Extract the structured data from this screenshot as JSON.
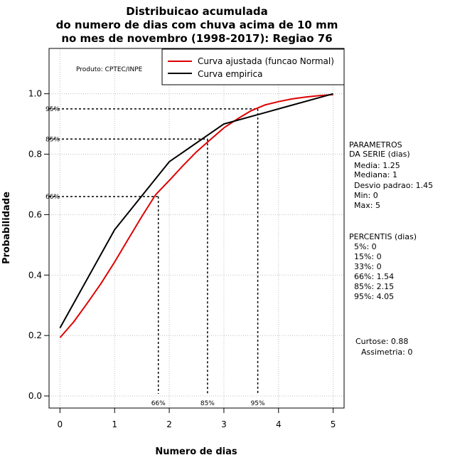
{
  "chart_data": {
    "type": "line",
    "title": [
      "Distribuicao acumulada",
      "do numero de dias com chuva acima de 10 mm",
      "no mes de novembro (1998-2017): Regiao 76"
    ],
    "xlabel": "Numero de dias",
    "ylabel": "Probabilidade",
    "xlim": [
      -0.2,
      5.2
    ],
    "ylim": [
      -0.04,
      1.15
    ],
    "x_ticks": [
      0,
      1,
      2,
      3,
      4,
      5
    ],
    "x_tick_labels": [
      "0",
      "1",
      "2",
      "3",
      "4",
      "5"
    ],
    "y_ticks": [
      0.0,
      0.2,
      0.4,
      0.6,
      0.8,
      1.0
    ],
    "y_tick_labels": [
      "0.0",
      "0.2",
      "0.4",
      "0.6",
      "0.8",
      "1.0"
    ],
    "grid": true,
    "product_label": "Produto: CPTEC/INPE",
    "legend": {
      "position": "top-right",
      "entries": [
        "Curva ajustada (funcao Normal)",
        "Curva empirica"
      ]
    },
    "series": [
      {
        "name": "Curva ajustada (funcao Normal)",
        "color": "#dd0000",
        "x": [
          0,
          0.25,
          0.5,
          0.75,
          1.0,
          1.25,
          1.5,
          1.75,
          2.0,
          2.25,
          2.5,
          2.75,
          3.0,
          3.25,
          3.5,
          3.75,
          4.0,
          4.25,
          4.5,
          4.75,
          5.0
        ],
        "y": [
          0.193,
          0.245,
          0.307,
          0.372,
          0.443,
          0.519,
          0.594,
          0.666,
          0.713,
          0.762,
          0.808,
          0.848,
          0.887,
          0.917,
          0.944,
          0.963,
          0.974,
          0.983,
          0.989,
          0.994,
          0.997
        ]
      },
      {
        "name": "Curva empirica",
        "color": "#000000",
        "x": [
          0,
          1,
          2,
          3,
          4,
          5
        ],
        "y": [
          0.225,
          0.55,
          0.775,
          0.9,
          0.95,
          1.0
        ]
      }
    ],
    "percentile_markers": [
      {
        "label": "66%",
        "x": 1.8,
        "y": 0.66
      },
      {
        "label": "85%",
        "x": 2.7,
        "y": 0.85
      },
      {
        "label": "95%",
        "x": 3.62,
        "y": 0.95
      }
    ]
  },
  "side_panel": {
    "parametros_title": [
      "PARAMETROS",
      "DA SERIE (dias)"
    ],
    "parametros": [
      "Media: 1.25",
      "Mediana: 1",
      "Desvio padrao: 1.45",
      "Min: 0",
      "Max: 5"
    ],
    "percentis_title": "PERCENTIS (dias)",
    "percentis": [
      "5%: 0",
      "15%: 0",
      "33%: 0",
      "66%: 1.54",
      "85%: 2.15",
      "95%: 4.05"
    ],
    "curtose": "Curtose: 0.88",
    "assimetria": "Assimetria: 0"
  }
}
